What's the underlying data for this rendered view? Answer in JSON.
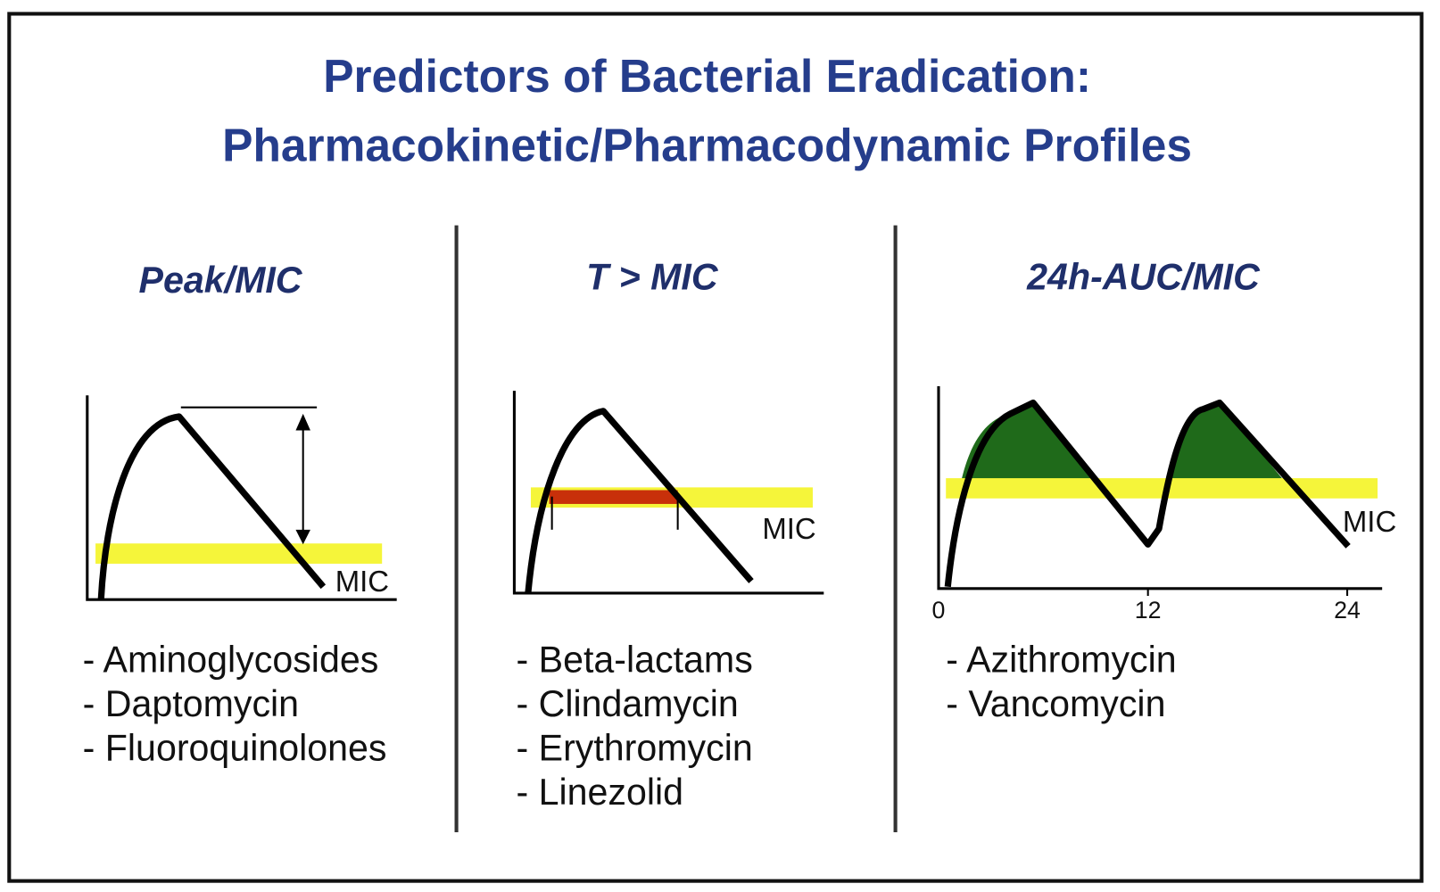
{
  "title": {
    "line1": "Predictors of Bacterial Eradication:",
    "line2": "Pharmacokinetic/Pharmacodynamic Profiles"
  },
  "panels": [
    {
      "heading": "Peak/MIC",
      "mic_label": "MIC",
      "drugs": [
        "- Aminoglycosides",
        "- Daptomycin",
        "- Fluoroquinolones"
      ]
    },
    {
      "heading": "T > MIC",
      "mic_label": "MIC",
      "drugs": [
        "- Beta-lactams",
        "- Clindamycin",
        "- Erythromycin",
        "- Linezolid"
      ]
    },
    {
      "heading": "24h-AUC/MIC",
      "mic_label": "MIC",
      "x_labels": [
        0,
        12,
        24
      ],
      "drugs": [
        "- Azithromycin",
        "- Vancomycin"
      ]
    }
  ]
}
